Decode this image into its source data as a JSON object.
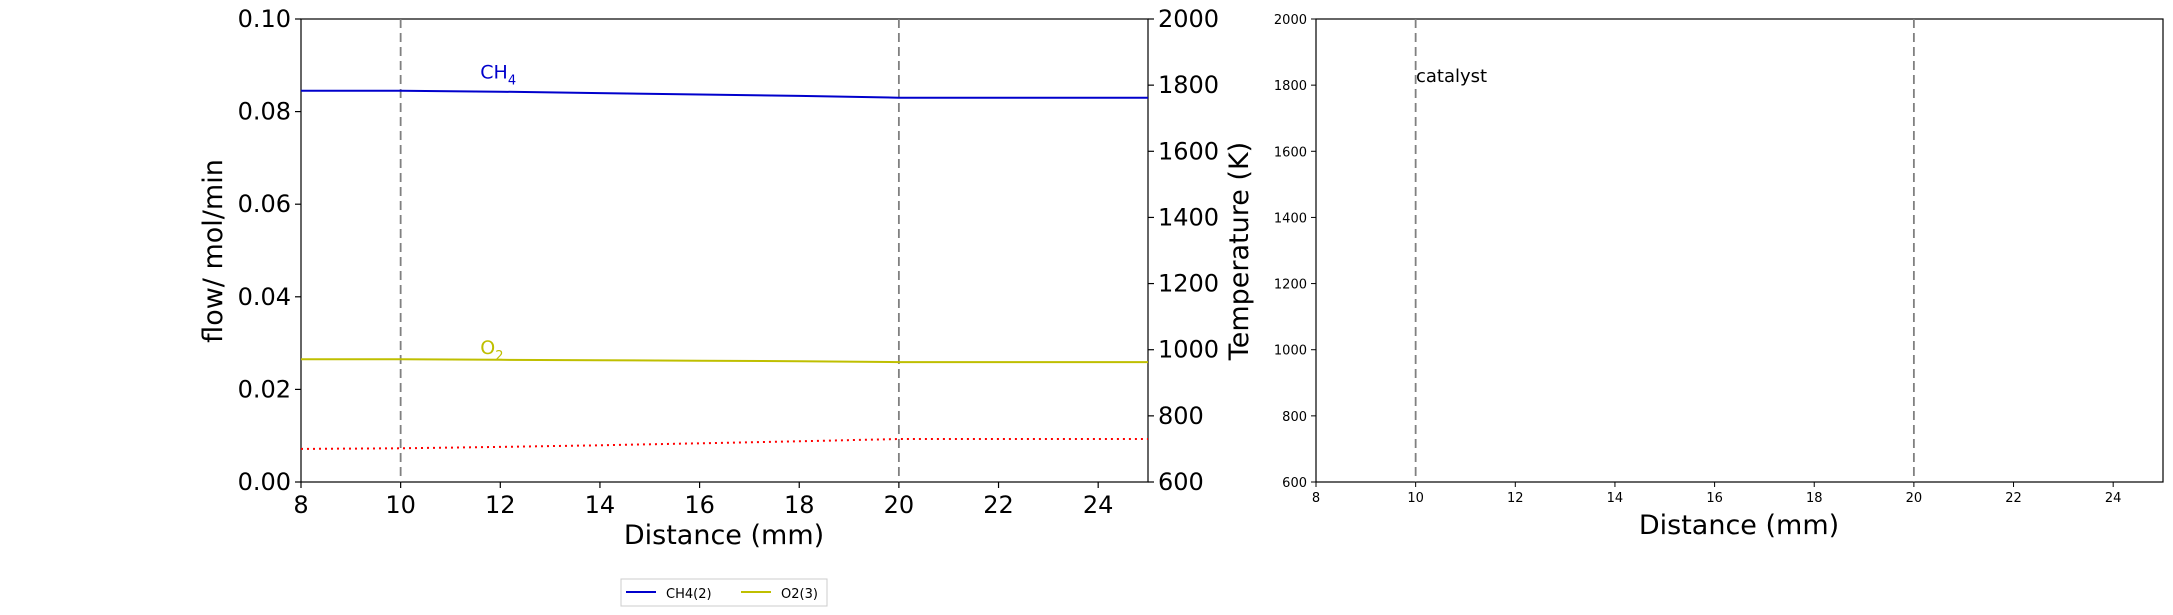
{
  "chart_data": [
    {
      "type": "line",
      "xlabel": "Distance (mm)",
      "ylabel": "flow/ mol/min",
      "y2label": "Temperature (K)",
      "xlim": [
        8,
        25
      ],
      "ylim": [
        0,
        0.1
      ],
      "y2lim": [
        600,
        2000
      ],
      "xticks": [
        "8",
        "10",
        "12",
        "14",
        "16",
        "18",
        "20",
        "22",
        "24"
      ],
      "yticks": [
        "0.00",
        "0.02",
        "0.04",
        "0.06",
        "0.08",
        "0.10"
      ],
      "y2ticks": [
        "600",
        "800",
        "1000",
        "1200",
        "1400",
        "1600",
        "1800",
        "2000"
      ],
      "vlines": [
        10,
        20
      ],
      "series": [
        {
          "name": "CH4(2)",
          "label": "CH",
          "label_sub": "4",
          "color": "#0000cc",
          "x": [
            8,
            10,
            12,
            14,
            16,
            18,
            20,
            22,
            25
          ],
          "values": [
            0.0845,
            0.0845,
            0.0843,
            0.084,
            0.0837,
            0.0834,
            0.083,
            0.083,
            0.083
          ]
        },
        {
          "name": "O2(3)",
          "label": "O",
          "label_sub": "2",
          "color": "#bfbf00",
          "x": [
            8,
            10,
            12,
            14,
            16,
            18,
            20,
            22,
            25
          ],
          "values": [
            0.0265,
            0.0265,
            0.0264,
            0.0263,
            0.0262,
            0.0261,
            0.0259,
            0.0259,
            0.0259
          ]
        },
        {
          "axis": "y2",
          "color": "#ff0000",
          "style": "dotted",
          "x": [
            8,
            10,
            12,
            14,
            16,
            18,
            20,
            22,
            25
          ],
          "values": [
            700,
            702,
            706,
            711,
            717,
            723,
            730,
            730,
            730
          ]
        }
      ],
      "legend": {
        "placement": "bottom-center",
        "entries": [
          "CH4(2)",
          "O2(3)"
        ]
      }
    },
    {
      "type": "line",
      "xlabel": "Distance (mm)",
      "xlim": [
        8,
        25
      ],
      "ylim": [
        600,
        2000
      ],
      "xticks": [
        "8",
        "10",
        "12",
        "14",
        "16",
        "18",
        "20",
        "22",
        "24"
      ],
      "yticks": [
        "600",
        "800",
        "1000",
        "1200",
        "1400",
        "1600",
        "1800",
        "2000"
      ],
      "vlines": [
        10,
        20
      ],
      "annotation": "catalyst",
      "series": []
    }
  ]
}
